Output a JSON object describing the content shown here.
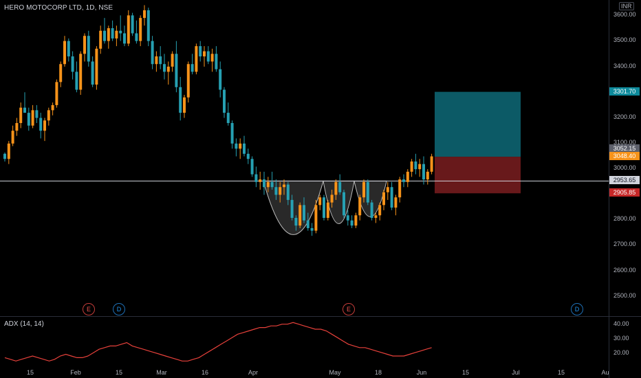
{
  "header": {
    "symbol_title": "HERO MOTOCORP LTD, 1D, NSE",
    "currency": "INR"
  },
  "indicator": {
    "title": "ADX (14, 14)"
  },
  "price_axis": {
    "ticks": [
      "3600.00",
      "3500.00",
      "3400.00",
      "3300.00",
      "3200.00",
      "3100.00",
      "3000.00",
      "2900.00",
      "2800.00",
      "2700.00",
      "2600.00",
      "2500.00"
    ]
  },
  "adx_axis": {
    "ticks": [
      "40.00",
      "30.00",
      "20.00"
    ]
  },
  "time_axis": {
    "labels": [
      "15",
      "Feb",
      "15",
      "Mar",
      "16",
      "Apr",
      "May",
      "18",
      "Jun",
      "15",
      "Jul",
      "15",
      "Au"
    ]
  },
  "price_tags": {
    "target": "3301.70",
    "last_close_gray": "3052.15",
    "current": "3048.40",
    "neckline": "2953.65",
    "stop": "2905.85"
  },
  "events": [
    {
      "label": "E",
      "type": "earnings"
    },
    {
      "label": "D",
      "type": "dividend"
    },
    {
      "label": "E",
      "type": "earnings"
    },
    {
      "label": "D",
      "type": "dividend"
    }
  ],
  "colors": {
    "up": "#f7931a",
    "down": "#26a0b2",
    "target_zone": "#0d5f6b",
    "stop_zone": "#6e1a1c",
    "adx_line": "#e8413b",
    "neckline": "#d1d4dc",
    "pattern_fill": "#4a4a4a"
  },
  "chart_data": {
    "type": "candlestick",
    "ylim": [
      2440,
      3660
    ],
    "adx_ylim": [
      14,
      44
    ],
    "neckline": 2953.65,
    "position": {
      "entry": 3048.4,
      "target": 3301.7,
      "stop": 2905.85
    },
    "candles": [
      [
        3060,
        3065,
        3030,
        3040
      ],
      [
        3040,
        3110,
        3020,
        3100
      ],
      [
        3100,
        3170,
        3090,
        3150
      ],
      [
        3150,
        3200,
        3130,
        3180
      ],
      [
        3180,
        3260,
        3160,
        3240
      ],
      [
        3240,
        3300,
        3220,
        3220
      ],
      [
        3220,
        3240,
        3150,
        3170
      ],
      [
        3170,
        3250,
        3160,
        3230
      ],
      [
        3230,
        3250,
        3180,
        3200
      ],
      [
        3200,
        3220,
        3120,
        3150
      ],
      [
        3150,
        3200,
        3110,
        3190
      ],
      [
        3190,
        3240,
        3170,
        3230
      ],
      [
        3230,
        3260,
        3210,
        3250
      ],
      [
        3250,
        3350,
        3240,
        3340
      ],
      [
        3340,
        3420,
        3320,
        3410
      ],
      [
        3410,
        3520,
        3400,
        3500
      ],
      [
        3500,
        3510,
        3420,
        3440
      ],
      [
        3440,
        3460,
        3350,
        3380
      ],
      [
        3380,
        3420,
        3300,
        3310
      ],
      [
        3310,
        3460,
        3290,
        3450
      ],
      [
        3450,
        3530,
        3420,
        3520
      ],
      [
        3520,
        3540,
        3400,
        3420
      ],
      [
        3420,
        3440,
        3320,
        3330
      ],
      [
        3330,
        3480,
        3310,
        3470
      ],
      [
        3470,
        3560,
        3450,
        3540
      ],
      [
        3540,
        3590,
        3490,
        3500
      ],
      [
        3500,
        3560,
        3470,
        3550
      ],
      [
        3550,
        3580,
        3500,
        3510
      ],
      [
        3510,
        3560,
        3480,
        3540
      ],
      [
        3540,
        3600,
        3500,
        3530
      ],
      [
        3530,
        3560,
        3480,
        3490
      ],
      [
        3490,
        3620,
        3480,
        3600
      ],
      [
        3600,
        3610,
        3520,
        3530
      ],
      [
        3530,
        3580,
        3490,
        3500
      ],
      [
        3500,
        3600,
        3480,
        3590
      ],
      [
        3590,
        3640,
        3560,
        3620
      ],
      [
        3620,
        3630,
        3480,
        3500
      ],
      [
        3500,
        3520,
        3390,
        3410
      ],
      [
        3410,
        3460,
        3380,
        3440
      ],
      [
        3440,
        3480,
        3390,
        3410
      ],
      [
        3410,
        3450,
        3350,
        3380
      ],
      [
        3380,
        3420,
        3330,
        3400
      ],
      [
        3400,
        3460,
        3380,
        3450
      ],
      [
        3450,
        3500,
        3300,
        3320
      ],
      [
        3320,
        3360,
        3190,
        3220
      ],
      [
        3220,
        3290,
        3200,
        3280
      ],
      [
        3280,
        3420,
        3260,
        3410
      ],
      [
        3410,
        3450,
        3370,
        3380
      ],
      [
        3380,
        3490,
        3370,
        3480
      ],
      [
        3480,
        3500,
        3420,
        3440
      ],
      [
        3440,
        3480,
        3400,
        3460
      ],
      [
        3460,
        3480,
        3410,
        3420
      ],
      [
        3420,
        3470,
        3380,
        3450
      ],
      [
        3450,
        3480,
        3380,
        3390
      ],
      [
        3390,
        3420,
        3280,
        3310
      ],
      [
        3310,
        3320,
        3200,
        3220
      ],
      [
        3220,
        3260,
        3170,
        3180
      ],
      [
        3180,
        3190,
        3080,
        3100
      ],
      [
        3100,
        3120,
        3050,
        3080
      ],
      [
        3080,
        3120,
        3040,
        3100
      ],
      [
        3100,
        3130,
        3050,
        3060
      ],
      [
        3060,
        3080,
        3020,
        3040
      ],
      [
        3040,
        3050,
        2970,
        2980
      ],
      [
        2980,
        3010,
        2930,
        2950
      ],
      [
        2950,
        2990,
        2920,
        2960
      ],
      [
        2960,
        2990,
        2900,
        2930
      ],
      [
        2930,
        2970,
        2910,
        2950
      ],
      [
        2950,
        2990,
        2920,
        2930
      ],
      [
        2930,
        2960,
        2880,
        2900
      ],
      [
        2900,
        2950,
        2870,
        2930
      ],
      [
        2930,
        2960,
        2900,
        2940
      ],
      [
        2940,
        2950,
        2860,
        2880
      ],
      [
        2880,
        2900,
        2800,
        2810
      ],
      [
        2810,
        2820,
        2760,
        2780
      ],
      [
        2780,
        2870,
        2770,
        2860
      ],
      [
        2860,
        2890,
        2790,
        2800
      ],
      [
        2800,
        2830,
        2760,
        2770
      ],
      [
        2770,
        2790,
        2740,
        2760
      ],
      [
        2760,
        2880,
        2750,
        2860
      ],
      [
        2860,
        2900,
        2840,
        2890
      ],
      [
        2890,
        2900,
        2800,
        2810
      ],
      [
        2810,
        2880,
        2800,
        2870
      ],
      [
        2870,
        2920,
        2850,
        2900
      ],
      [
        2900,
        2960,
        2880,
        2950
      ],
      [
        2950,
        2980,
        2900,
        2910
      ],
      [
        2910,
        2920,
        2810,
        2820
      ],
      [
        2820,
        2840,
        2780,
        2800
      ],
      [
        2800,
        2820,
        2770,
        2780
      ],
      [
        2780,
        2830,
        2770,
        2820
      ],
      [
        2820,
        2900,
        2800,
        2890
      ],
      [
        2890,
        2960,
        2870,
        2950
      ],
      [
        2950,
        2960,
        2860,
        2870
      ],
      [
        2870,
        2880,
        2800,
        2810
      ],
      [
        2810,
        2830,
        2790,
        2820
      ],
      [
        2820,
        2870,
        2800,
        2860
      ],
      [
        2860,
        2920,
        2840,
        2910
      ],
      [
        2910,
        2950,
        2880,
        2930
      ],
      [
        2930,
        2950,
        2840,
        2850
      ],
      [
        2850,
        2900,
        2820,
        2890
      ],
      [
        2890,
        2970,
        2870,
        2960
      ],
      [
        2960,
        2980,
        2930,
        2950
      ],
      [
        2950,
        3000,
        2930,
        2990
      ],
      [
        2990,
        3040,
        2970,
        3030
      ],
      [
        3030,
        3060,
        2980,
        3000
      ],
      [
        3000,
        3040,
        2970,
        3020
      ],
      [
        3020,
        3050,
        2940,
        2960
      ],
      [
        2960,
        3000,
        2940,
        2990
      ],
      [
        2990,
        3060,
        2980,
        3050
      ]
    ],
    "adx": [
      20,
      19,
      18,
      19,
      20,
      21,
      20,
      19,
      18,
      19,
      21,
      22,
      21,
      20,
      20,
      21,
      23,
      25,
      26,
      27,
      27,
      28,
      29,
      27,
      26,
      25,
      24,
      23,
      22,
      21,
      20,
      19,
      18,
      18,
      19,
      20,
      22,
      24,
      26,
      28,
      30,
      32,
      34,
      35,
      36,
      37,
      38,
      38,
      39,
      39,
      40,
      40,
      41,
      40,
      39,
      38,
      37,
      37,
      36,
      34,
      32,
      30,
      28,
      27,
      26,
      26,
      25,
      24,
      23,
      22,
      21,
      21,
      21,
      22,
      23,
      24,
      25,
      26
    ]
  }
}
